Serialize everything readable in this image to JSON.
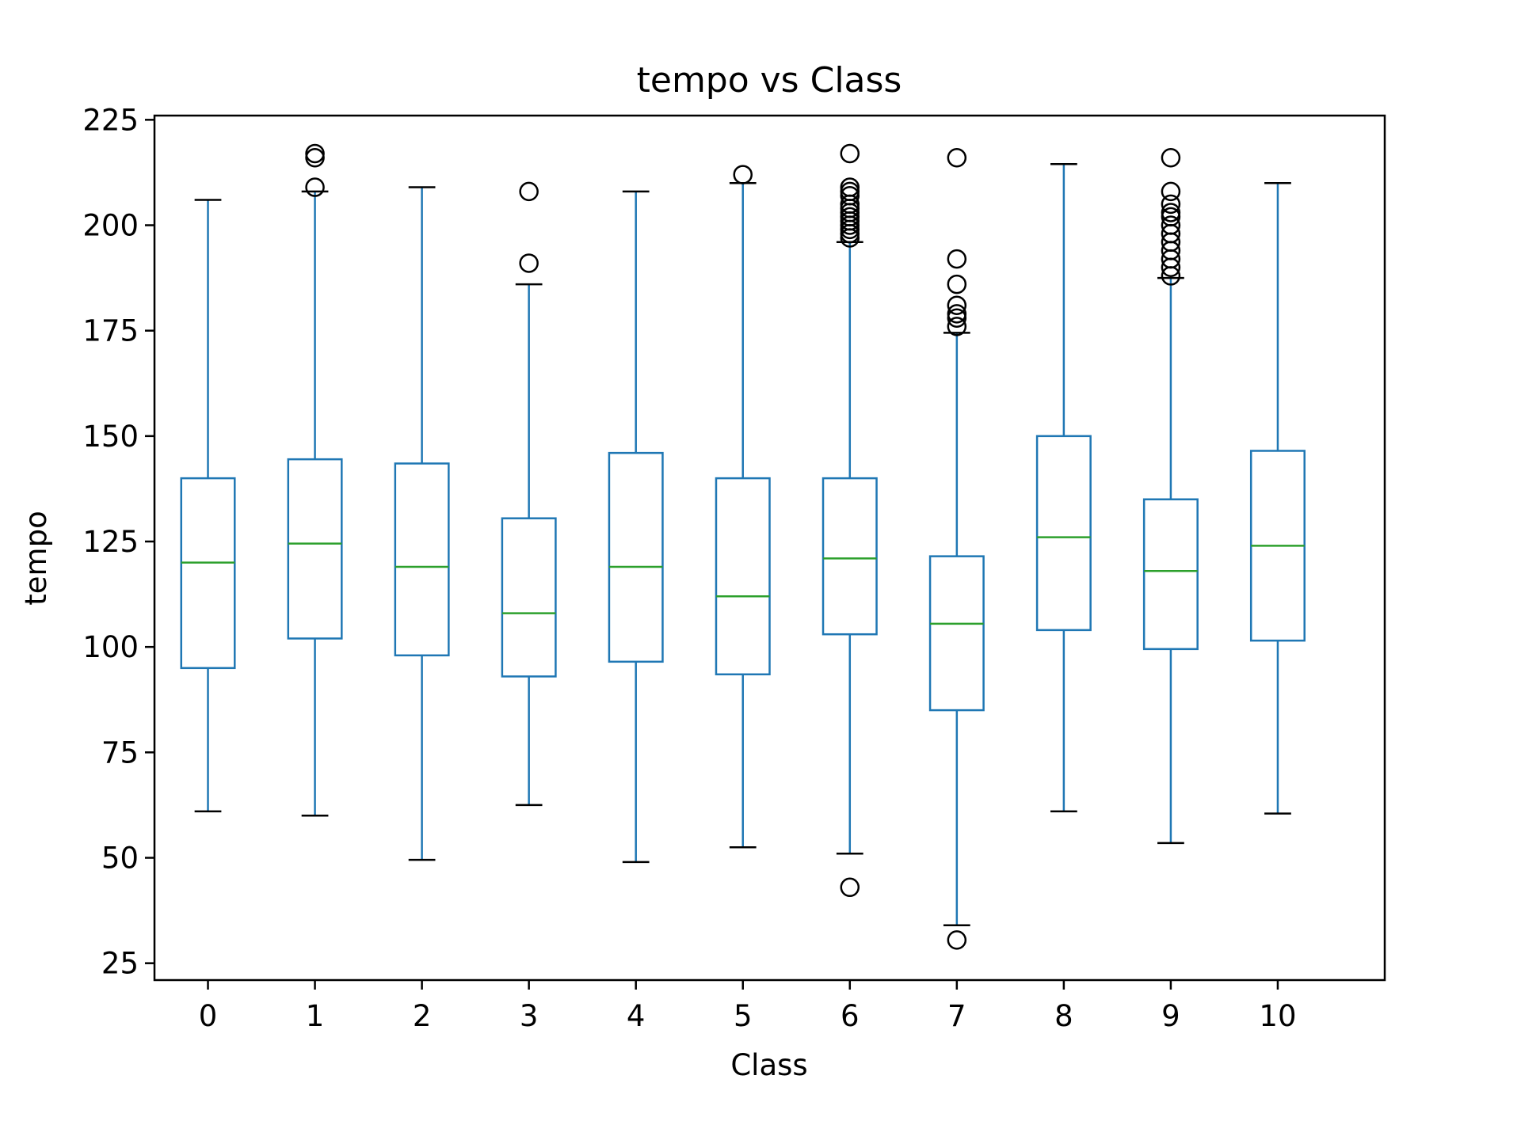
{
  "chart_data": {
    "type": "box",
    "title": "tempo vs Class",
    "xlabel": "Class",
    "ylabel": "tempo",
    "ylim": [
      21,
      226
    ],
    "yticks": [
      25,
      50,
      75,
      100,
      125,
      150,
      175,
      200,
      225
    ],
    "categories": [
      "0",
      "1",
      "2",
      "3",
      "4",
      "5",
      "6",
      "7",
      "8",
      "9",
      "10"
    ],
    "boxes": [
      {
        "category": "0",
        "whisker_low": 61,
        "q1": 95,
        "median": 120,
        "q3": 140,
        "whisker_high": 206,
        "outliers": []
      },
      {
        "category": "1",
        "whisker_low": 60,
        "q1": 102,
        "median": 124.5,
        "q3": 144.5,
        "whisker_high": 208,
        "outliers": [
          209,
          216,
          217
        ]
      },
      {
        "category": "2",
        "whisker_low": 49.5,
        "q1": 98,
        "median": 119,
        "q3": 143.5,
        "whisker_high": 209,
        "outliers": []
      },
      {
        "category": "3",
        "whisker_low": 62.5,
        "q1": 93,
        "median": 108,
        "q3": 130.5,
        "whisker_high": 186,
        "outliers": [
          191,
          208
        ]
      },
      {
        "category": "4",
        "whisker_low": 49,
        "q1": 96.5,
        "median": 119,
        "q3": 146,
        "whisker_high": 208,
        "outliers": []
      },
      {
        "category": "5",
        "whisker_low": 52.5,
        "q1": 93.5,
        "median": 112,
        "q3": 140,
        "whisker_high": 210,
        "outliers": [
          212
        ]
      },
      {
        "category": "6",
        "whisker_low": 51,
        "q1": 103,
        "median": 121,
        "q3": 140,
        "whisker_high": 196,
        "outliers": [
          43,
          197,
          198,
          199,
          200,
          201,
          202,
          203,
          204,
          205,
          207,
          208,
          209,
          217
        ]
      },
      {
        "category": "7",
        "whisker_low": 34,
        "q1": 85,
        "median": 105.5,
        "q3": 121.5,
        "whisker_high": 174.5,
        "outliers": [
          30.5,
          176,
          178,
          179,
          181,
          186,
          192,
          216
        ]
      },
      {
        "category": "8",
        "whisker_low": 61,
        "q1": 104,
        "median": 126,
        "q3": 150,
        "whisker_high": 214.5,
        "outliers": []
      },
      {
        "category": "9",
        "whisker_low": 53.5,
        "q1": 99.5,
        "median": 118,
        "q3": 135,
        "whisker_high": 187.5,
        "outliers": [
          188,
          190,
          192,
          194,
          196,
          198,
          200,
          202,
          203,
          205,
          208,
          216
        ]
      },
      {
        "category": "10",
        "whisker_low": 60.5,
        "q1": 101.5,
        "median": 124,
        "q3": 146.5,
        "whisker_high": 210,
        "outliers": []
      }
    ],
    "colors": {
      "box": "#1f77b4",
      "median": "#2ca02c",
      "caps": "#000000",
      "outliers": "#000000"
    },
    "grid": false,
    "legend": "none"
  }
}
